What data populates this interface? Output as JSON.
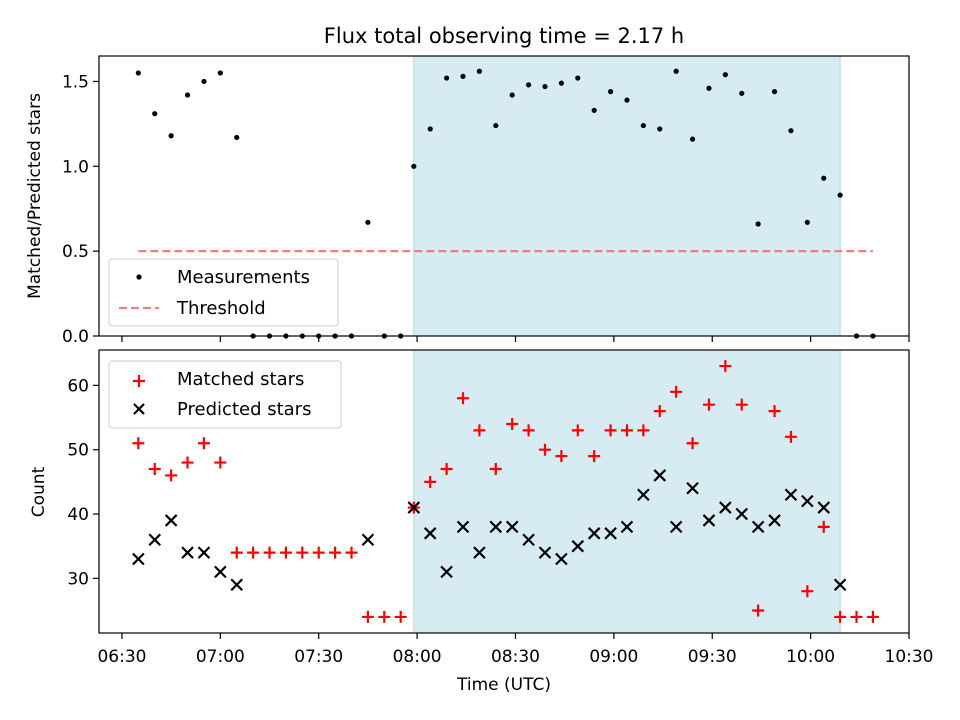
{
  "chart_data": [
    {
      "type": "scatter",
      "title": "Flux total observing time = 2.17 h",
      "xlabel": "",
      "ylabel": "Matched/Predicted stars",
      "ylim": [
        0,
        1.65
      ],
      "yticks": [
        "0.0",
        "0.5",
        "1.0",
        "1.5"
      ],
      "shaded_span": {
        "start": "07:59",
        "end": "10:09"
      },
      "legend_position": "lower-left",
      "series": [
        {
          "name": "Measurements",
          "marker": "dot",
          "color": "#000000",
          "points": [
            [
              "06:35",
              1.55
            ],
            [
              "06:40",
              1.31
            ],
            [
              "06:45",
              1.18
            ],
            [
              "06:50",
              1.42
            ],
            [
              "06:55",
              1.5
            ],
            [
              "07:00",
              1.55
            ],
            [
              "07:05",
              1.17
            ],
            [
              "07:10",
              0.0
            ],
            [
              "07:15",
              0.0
            ],
            [
              "07:20",
              0.0
            ],
            [
              "07:25",
              0.0
            ],
            [
              "07:30",
              0.0
            ],
            [
              "07:35",
              0.0
            ],
            [
              "07:40",
              0.0
            ],
            [
              "07:45",
              0.67
            ],
            [
              "07:50",
              0.0
            ],
            [
              "07:55",
              0.0
            ],
            [
              "07:59",
              1.0
            ],
            [
              "08:04",
              1.22
            ],
            [
              "08:09",
              1.52
            ],
            [
              "08:14",
              1.53
            ],
            [
              "08:19",
              1.56
            ],
            [
              "08:24",
              1.24
            ],
            [
              "08:29",
              1.42
            ],
            [
              "08:34",
              1.48
            ],
            [
              "08:39",
              1.47
            ],
            [
              "08:44",
              1.49
            ],
            [
              "08:49",
              1.52
            ],
            [
              "08:54",
              1.33
            ],
            [
              "08:59",
              1.44
            ],
            [
              "09:04",
              1.39
            ],
            [
              "09:09",
              1.24
            ],
            [
              "09:14",
              1.22
            ],
            [
              "09:19",
              1.56
            ],
            [
              "09:24",
              1.16
            ],
            [
              "09:29",
              1.46
            ],
            [
              "09:34",
              1.54
            ],
            [
              "09:39",
              1.43
            ],
            [
              "09:44",
              0.66
            ],
            [
              "09:49",
              1.44
            ],
            [
              "09:54",
              1.21
            ],
            [
              "09:59",
              0.67
            ],
            [
              "10:04",
              0.93
            ],
            [
              "10:09",
              0.83
            ],
            [
              "10:14",
              0.0
            ],
            [
              "10:19",
              0.0
            ]
          ]
        },
        {
          "name": "Threshold",
          "marker": "dashed-line",
          "color": "#f08080",
          "points": [
            [
              "06:35",
              0.5
            ],
            [
              "10:19",
              0.5
            ]
          ]
        }
      ]
    },
    {
      "type": "scatter",
      "title": "",
      "xlabel": "Time (UTC)",
      "ylabel": "Count",
      "ylim": [
        21.5,
        65.5
      ],
      "yticks": [
        "30",
        "40",
        "50",
        "60"
      ],
      "xticks": [
        "06:30",
        "07:00",
        "07:30",
        "08:00",
        "08:30",
        "09:00",
        "09:30",
        "10:00",
        "10:30"
      ],
      "xlim": [
        "06:23",
        "10:30"
      ],
      "shaded_span": {
        "start": "07:59",
        "end": "10:09"
      },
      "legend_position": "upper-left",
      "series": [
        {
          "name": "Matched stars",
          "marker": "plus",
          "color": "#ff0000",
          "points": [
            [
              "06:35",
              51
            ],
            [
              "06:40",
              47
            ],
            [
              "06:45",
              46
            ],
            [
              "06:50",
              48
            ],
            [
              "06:55",
              51
            ],
            [
              "07:00",
              48
            ],
            [
              "07:05",
              34
            ],
            [
              "07:10",
              34
            ],
            [
              "07:15",
              34
            ],
            [
              "07:20",
              34
            ],
            [
              "07:25",
              34
            ],
            [
              "07:30",
              34
            ],
            [
              "07:35",
              34
            ],
            [
              "07:40",
              34
            ],
            [
              "07:45",
              24
            ],
            [
              "07:50",
              24
            ],
            [
              "07:55",
              24
            ],
            [
              "07:59",
              41
            ],
            [
              "08:04",
              45
            ],
            [
              "08:09",
              47
            ],
            [
              "08:14",
              58
            ],
            [
              "08:19",
              53
            ],
            [
              "08:24",
              47
            ],
            [
              "08:29",
              54
            ],
            [
              "08:34",
              53
            ],
            [
              "08:39",
              50
            ],
            [
              "08:44",
              49
            ],
            [
              "08:49",
              53
            ],
            [
              "08:54",
              49
            ],
            [
              "08:59",
              53
            ],
            [
              "09:04",
              53
            ],
            [
              "09:09",
              53
            ],
            [
              "09:14",
              56
            ],
            [
              "09:19",
              59
            ],
            [
              "09:24",
              51
            ],
            [
              "09:29",
              57
            ],
            [
              "09:34",
              63
            ],
            [
              "09:39",
              57
            ],
            [
              "09:44",
              25
            ],
            [
              "09:49",
              56
            ],
            [
              "09:54",
              52
            ],
            [
              "09:59",
              28
            ],
            [
              "10:04",
              38
            ],
            [
              "10:09",
              24
            ],
            [
              "10:14",
              24
            ],
            [
              "10:19",
              24
            ]
          ]
        },
        {
          "name": "Predicted stars",
          "marker": "x",
          "color": "#000000",
          "points": [
            [
              "06:35",
              33
            ],
            [
              "06:40",
              36
            ],
            [
              "06:45",
              39
            ],
            [
              "06:50",
              34
            ],
            [
              "06:55",
              34
            ],
            [
              "07:00",
              31
            ],
            [
              "07:05",
              29
            ],
            [
              "07:45",
              36
            ],
            [
              "07:59",
              41
            ],
            [
              "08:04",
              37
            ],
            [
              "08:09",
              31
            ],
            [
              "08:14",
              38
            ],
            [
              "08:19",
              34
            ],
            [
              "08:24",
              38
            ],
            [
              "08:29",
              38
            ],
            [
              "08:34",
              36
            ],
            [
              "08:39",
              34
            ],
            [
              "08:44",
              33
            ],
            [
              "08:49",
              35
            ],
            [
              "08:54",
              37
            ],
            [
              "08:59",
              37
            ],
            [
              "09:04",
              38
            ],
            [
              "09:09",
              43
            ],
            [
              "09:14",
              46
            ],
            [
              "09:19",
              38
            ],
            [
              "09:24",
              44
            ],
            [
              "09:29",
              39
            ],
            [
              "09:34",
              41
            ],
            [
              "09:39",
              40
            ],
            [
              "09:44",
              38
            ],
            [
              "09:49",
              39
            ],
            [
              "09:54",
              43
            ],
            [
              "09:59",
              42
            ],
            [
              "10:04",
              41
            ],
            [
              "10:09",
              29
            ]
          ]
        }
      ]
    }
  ],
  "colors": {
    "shade": "#add8e6",
    "measurement": "#000000",
    "threshold": "#f08080",
    "matched": "#ff0000",
    "predicted": "#000000"
  }
}
